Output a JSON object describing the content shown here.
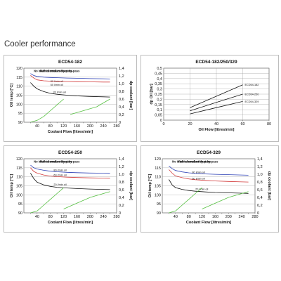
{
  "page": {
    "title": "Cooler performance"
  },
  "chart_data": [
    {
      "type": "line",
      "title": "ECD54-182",
      "xlabel": "Coolant Flow [litres/min]",
      "ylabel": "Oil temp [°C]",
      "y2label": "dp coolant [bar]",
      "xlim": [
        0,
        280
      ],
      "ylim": [
        90,
        120
      ],
      "y2lim": [
        0,
        1.4
      ],
      "xticks": [
        "20",
        "40",
        "60",
        "80",
        "100",
        "120",
        "140",
        "160",
        "180",
        "200",
        "220",
        "240",
        "260",
        "280"
      ],
      "yticks": [
        "90",
        "95",
        "100",
        "105",
        "110",
        "115",
        "120"
      ],
      "y2ticks": [
        "0",
        "0,2",
        "0,4",
        "0,6",
        "0,8",
        "1,0",
        "1,2",
        "1,4"
      ],
      "annotations": [
        "No internal coolant by-pass",
        "Full internal coolant by-pass"
      ],
      "grid": true,
      "series": [
        {
          "name": "80 l/min oil",
          "color": "#2b3fb5",
          "axis": "left",
          "x": [
            20,
            30,
            40,
            60,
            80,
            100,
            130,
            160,
            200,
            240,
            260
          ],
          "y": [
            117,
            115.9,
            115.4,
            115,
            114.8,
            114.7,
            114.5,
            114.4,
            114.2,
            114.1,
            114.0
          ]
        },
        {
          "name": "60 l/min oil",
          "color": "#d23a3a",
          "axis": "left",
          "x": [
            20,
            30,
            40,
            60,
            80,
            100,
            130,
            160,
            200,
            240,
            260
          ],
          "y": [
            116,
            114.5,
            113.5,
            113,
            112.8,
            112.7,
            112.6,
            112.5,
            112.4,
            112.3,
            112.3
          ]
        },
        {
          "name": "20 l/min oil",
          "color": "#111111",
          "axis": "left",
          "x": [
            20,
            30,
            40,
            60,
            80,
            100,
            130,
            160,
            200,
            240,
            260
          ],
          "y": [
            112,
            110,
            108.5,
            107,
            106,
            105.5,
            105,
            104.6,
            104.3,
            104.1,
            104.0
          ]
        },
        {
          "name": "",
          "color": "#55c040",
          "axis": "right",
          "x": [
            20,
            40,
            60,
            80,
            100,
            120
          ],
          "y": [
            0,
            0.05,
            0.15,
            0.3,
            0.45,
            0.6
          ]
        },
        {
          "name": "",
          "color": "#55c040",
          "axis": "right",
          "x": [
            140,
            180,
            220,
            260
          ],
          "y": [
            0.2,
            0.3,
            0.4,
            0.6
          ]
        }
      ]
    },
    {
      "type": "line",
      "title": "ECD54-182/250/329",
      "xlabel": "Oil Flow [litres/min]",
      "ylabel": "dp Oil [bar]",
      "xlim": [
        0,
        80
      ],
      "ylim": [
        0,
        0.5
      ],
      "xticks": [
        "0",
        "20",
        "40",
        "60",
        "80"
      ],
      "yticks": [
        "0",
        "0,05",
        "0,1",
        "0,15",
        "0,2",
        "0,25",
        "0,3",
        "0,35",
        "0,4",
        "0,45",
        "0,5"
      ],
      "grid": true,
      "series": [
        {
          "name": "ECD54-182",
          "color": "#111111",
          "x": [
            20,
            40,
            60
          ],
          "y": [
            0.12,
            0.23,
            0.34
          ]
        },
        {
          "name": "ECD54-250",
          "color": "#111111",
          "x": [
            20,
            40,
            60
          ],
          "y": [
            0.09,
            0.17,
            0.25
          ]
        },
        {
          "name": "ECD54-329",
          "color": "#111111",
          "x": [
            20,
            40,
            60
          ],
          "y": [
            0.06,
            0.12,
            0.18
          ]
        }
      ]
    },
    {
      "type": "line",
      "title": "ECD54-250",
      "xlabel": "Coolant Flow [litres/min]",
      "ylabel": "Oil temp [°C]",
      "y2label": "dp coolant [bar]",
      "xlim": [
        0,
        280
      ],
      "ylim": [
        90,
        120
      ],
      "y2lim": [
        0,
        1.4
      ],
      "xticks": [
        "20",
        "40",
        "60",
        "80",
        "100",
        "120",
        "140",
        "160",
        "180",
        "200",
        "220",
        "240",
        "260",
        "280"
      ],
      "yticks": [
        "90",
        "95",
        "100",
        "105",
        "110",
        "115",
        "120"
      ],
      "y2ticks": [
        "0",
        "0,2",
        "0,4",
        "0,6",
        "0,8",
        "1,0",
        "1,2",
        "1,4"
      ],
      "annotations": [
        "No internal coolant by-pass",
        "Full internal coolant by-pass"
      ],
      "grid": true,
      "series": [
        {
          "name": "80 l/min oil",
          "color": "#2b3fb5",
          "axis": "left",
          "x": [
            20,
            30,
            40,
            60,
            80,
            100,
            130,
            160,
            200,
            240,
            260
          ],
          "y": [
            116.5,
            115,
            114.3,
            113.6,
            113.1,
            112.8,
            112.5,
            112.3,
            112.1,
            112.0,
            111.9
          ]
        },
        {
          "name": "60 l/min oil",
          "color": "#d23a3a",
          "axis": "left",
          "x": [
            20,
            30,
            40,
            60,
            80,
            100,
            130,
            160,
            200,
            240,
            260
          ],
          "y": [
            115,
            113,
            112,
            111,
            110.4,
            110.1,
            109.8,
            109.6,
            109.4,
            109.3,
            109.2
          ]
        },
        {
          "name": "20 l/min oil",
          "color": "#111111",
          "axis": "left",
          "x": [
            20,
            30,
            40,
            60,
            80,
            100,
            130,
            160,
            200,
            240,
            260
          ],
          "y": [
            112,
            109,
            107,
            105.5,
            104.7,
            104.2,
            103.8,
            103.5,
            103.2,
            103.0,
            102.9
          ]
        },
        {
          "name": "",
          "color": "#55c040",
          "axis": "right",
          "x": [
            20,
            40,
            60,
            80,
            100,
            120
          ],
          "y": [
            0,
            0.05,
            0.2,
            0.35,
            0.5,
            0.65
          ]
        },
        {
          "name": "",
          "color": "#55c040",
          "axis": "right",
          "x": [
            120,
            160,
            200,
            260
          ],
          "y": [
            0.1,
            0.25,
            0.4,
            0.55
          ]
        }
      ]
    },
    {
      "type": "line",
      "title": "ECD54-329",
      "xlabel": "Coolant Flow [litres/min]",
      "ylabel": "Oil temp [°C]",
      "y2label": "dp coolant [bar]",
      "xlim": [
        0,
        280
      ],
      "ylim": [
        90,
        120
      ],
      "y2lim": [
        0,
        1.4
      ],
      "xticks": [
        "20",
        "40",
        "60",
        "80",
        "100",
        "120",
        "140",
        "160",
        "180",
        "200",
        "220",
        "240",
        "260",
        "280"
      ],
      "yticks": [
        "90",
        "95",
        "100",
        "105",
        "110",
        "115",
        "120"
      ],
      "y2ticks": [
        "0",
        "0,2",
        "0,4",
        "0,6",
        "0,8",
        "1,0",
        "1,2",
        "1,4"
      ],
      "annotations": [
        "No internal coolant by-pass",
        "Full internal coolant by-pass"
      ],
      "grid": true,
      "series": [
        {
          "name": "80 l/min oil",
          "color": "#2b3fb5",
          "axis": "left",
          "x": [
            20,
            30,
            40,
            60,
            80,
            100,
            130,
            160,
            200,
            240,
            260
          ],
          "y": [
            116,
            114.5,
            113.5,
            112.7,
            112.2,
            111.9,
            111.6,
            111.4,
            111.2,
            111.0,
            110.9
          ]
        },
        {
          "name": "60 l/min oil",
          "color": "#d23a3a",
          "axis": "left",
          "x": [
            20,
            30,
            40,
            60,
            80,
            100,
            130,
            160,
            200,
            240,
            260
          ],
          "y": [
            114,
            112,
            110.5,
            109.5,
            108.8,
            108.4,
            108.0,
            107.7,
            107.4,
            107.2,
            107.1
          ]
        },
        {
          "name": "20 l/min oil",
          "color": "#111111",
          "axis": "left",
          "x": [
            20,
            30,
            40,
            60,
            80,
            100,
            130,
            160,
            200,
            240,
            260
          ],
          "y": [
            108.5,
            105.5,
            104,
            103,
            102.4,
            102.0,
            101.6,
            101.3,
            101.1,
            100.9,
            100.8
          ]
        },
        {
          "name": "",
          "color": "#55c040",
          "axis": "right",
          "x": [
            20,
            40,
            60,
            80,
            100,
            120
          ],
          "y": [
            0,
            0.05,
            0.2,
            0.35,
            0.5,
            0.65
          ]
        },
        {
          "name": "",
          "color": "#55c040",
          "axis": "right",
          "x": [
            120,
            160,
            200,
            260
          ],
          "y": [
            0.1,
            0.25,
            0.4,
            0.55
          ]
        }
      ]
    }
  ]
}
